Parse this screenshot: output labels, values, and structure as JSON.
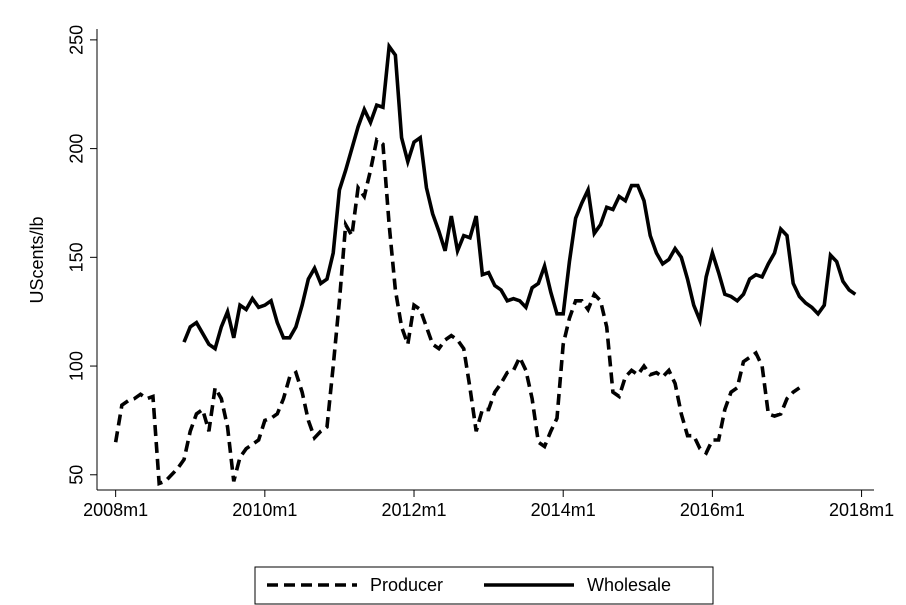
{
  "chart_data": {
    "type": "line",
    "y_label": "UScents/lb",
    "x": [
      576,
      577,
      578,
      579,
      580,
      581,
      582,
      583,
      584,
      585,
      586,
      587,
      588,
      589,
      590,
      591,
      592,
      593,
      594,
      595,
      596,
      597,
      598,
      599,
      600,
      601,
      602,
      603,
      604,
      605,
      606,
      607,
      608,
      609,
      610,
      611,
      612,
      613,
      614,
      615,
      616,
      617,
      618,
      619,
      620,
      621,
      622,
      623,
      624,
      625,
      626,
      627,
      628,
      629,
      630,
      631,
      632,
      633,
      634,
      635,
      636,
      637,
      638,
      639,
      640,
      641,
      642,
      643,
      644,
      645,
      646,
      647,
      648,
      649,
      650,
      651,
      652,
      653,
      654,
      655,
      656,
      657,
      658,
      659,
      660,
      661,
      662,
      663,
      664,
      665,
      666,
      667,
      668,
      669,
      670,
      671,
      672,
      673,
      674,
      675,
      676,
      677,
      678,
      679,
      680,
      681,
      682,
      683,
      684,
      685,
      686,
      687,
      688,
      689,
      690,
      691,
      692,
      693,
      694,
      695
    ],
    "series": [
      {
        "name": "Producer",
        "color": "#000000",
        "line_style": "dashed",
        "values": [
          65,
          82,
          84,
          85,
          87,
          85,
          86,
          46,
          47,
          50,
          53,
          57,
          70,
          78,
          80,
          70,
          90,
          85,
          72,
          47,
          58,
          62,
          64,
          66,
          75,
          76,
          78,
          85,
          95,
          97,
          88,
          75,
          67,
          70,
          72,
          100,
          130,
          165,
          160,
          182,
          178,
          190,
          204,
          202,
          165,
          135,
          118,
          110,
          128,
          126,
          118,
          110,
          108,
          112,
          114,
          112,
          108,
          90,
          70,
          80,
          80,
          88,
          92,
          97,
          98,
          104,
          98,
          85,
          65,
          63,
          70,
          76,
          110,
          122,
          130,
          130,
          126,
          133,
          130,
          118,
          88,
          86,
          95,
          98,
          96,
          100,
          96,
          97,
          95,
          98,
          92,
          78,
          68,
          68,
          62,
          60,
          66,
          66,
          80,
          88,
          90,
          102,
          104,
          106,
          100,
          78,
          77,
          78,
          85,
          88,
          90,
          null,
          null,
          null,
          null,
          null,
          null,
          null,
          null,
          null
        ]
      },
      {
        "name": "Wholesale",
        "color": "#000000",
        "line_style": "solid",
        "values": [
          null,
          null,
          null,
          null,
          null,
          null,
          null,
          null,
          null,
          null,
          null,
          111,
          118,
          120,
          115,
          110,
          108,
          118,
          125,
          113,
          128,
          126,
          131,
          127,
          128,
          130,
          120,
          113,
          113,
          118,
          128,
          140,
          145,
          138,
          140,
          152,
          181,
          190,
          200,
          210,
          218,
          212,
          220,
          219,
          247,
          243,
          205,
          194,
          203,
          205,
          182,
          170,
          162,
          153,
          169,
          153,
          160,
          159,
          169,
          142,
          143,
          137,
          135,
          130,
          131,
          130,
          127,
          136,
          138,
          146,
          134,
          124,
          124,
          148,
          168,
          175,
          181,
          161,
          165,
          173,
          172,
          178,
          176,
          183,
          183,
          176,
          160,
          152,
          147,
          149,
          154,
          150,
          140,
          128,
          121,
          141,
          152,
          143,
          133,
          132,
          130,
          133,
          140,
          142,
          141,
          147,
          152,
          163,
          160,
          138,
          132,
          129,
          127,
          124,
          128,
          151,
          148,
          139,
          135,
          133
        ]
      }
    ],
    "xlim": [
      573,
      698
    ],
    "xticks": [
      {
        "value": 576,
        "label": "2008m1"
      },
      {
        "value": 600,
        "label": "2010m1"
      },
      {
        "value": 624,
        "label": "2012m1"
      },
      {
        "value": 648,
        "label": "2014m1"
      },
      {
        "value": 672,
        "label": "2016m1"
      },
      {
        "value": 696,
        "label": "2018m1"
      }
    ],
    "ylim": [
      43,
      255
    ],
    "yticks": [
      50,
      100,
      150,
      200,
      250
    ],
    "legend_position": "bottom"
  }
}
